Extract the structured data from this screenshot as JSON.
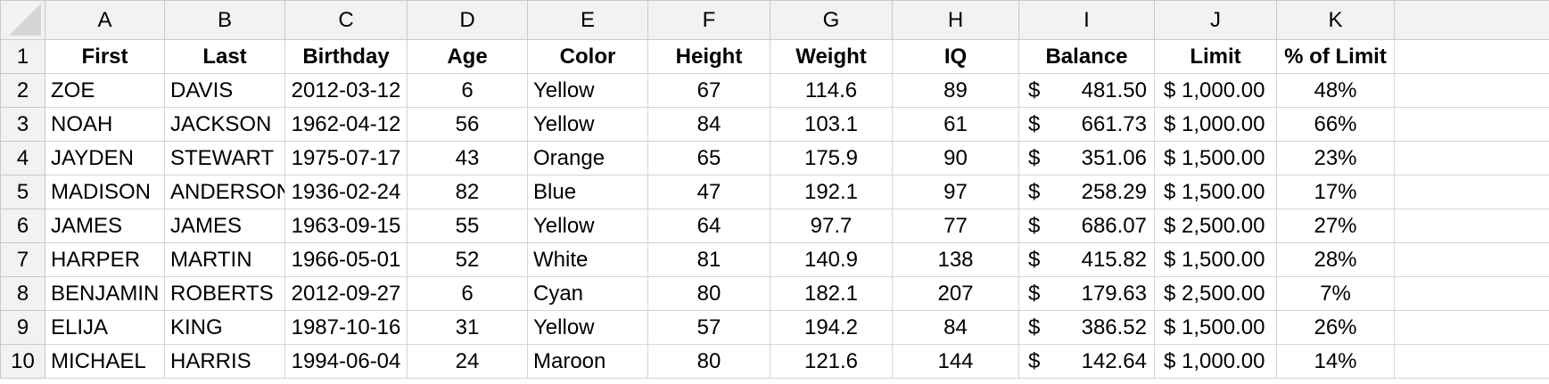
{
  "column_letters": [
    "A",
    "B",
    "C",
    "D",
    "E",
    "F",
    "G",
    "H",
    "I",
    "J",
    "K"
  ],
  "header_row": {
    "number": "1",
    "cells": [
      "First",
      "Last",
      "Birthday",
      "Age",
      "Color",
      "Height",
      "Weight",
      "IQ",
      "Balance",
      "Limit",
      "% of Limit"
    ]
  },
  "rows": [
    {
      "number": "2",
      "first": "ZOE",
      "last": "DAVIS",
      "birthday": "2012-03-12",
      "age": "6",
      "color": "Yellow",
      "height": "67",
      "weight": "114.6",
      "iq": "89",
      "balance_symbol": "$",
      "balance": "481.50",
      "limit": "$ 1,000.00",
      "pct": "48%"
    },
    {
      "number": "3",
      "first": "NOAH",
      "last": "JACKSON",
      "birthday": "1962-04-12",
      "age": "56",
      "color": "Yellow",
      "height": "84",
      "weight": "103.1",
      "iq": "61",
      "balance_symbol": "$",
      "balance": "661.73",
      "limit": "$ 1,000.00",
      "pct": "66%"
    },
    {
      "number": "4",
      "first": "JAYDEN",
      "last": "STEWART",
      "birthday": "1975-07-17",
      "age": "43",
      "color": "Orange",
      "height": "65",
      "weight": "175.9",
      "iq": "90",
      "balance_symbol": "$",
      "balance": "351.06",
      "limit": "$ 1,500.00",
      "pct": "23%"
    },
    {
      "number": "5",
      "first": "MADISON",
      "last": "ANDERSON",
      "birthday": "1936-02-24",
      "age": "82",
      "color": "Blue",
      "height": "47",
      "weight": "192.1",
      "iq": "97",
      "balance_symbol": "$",
      "balance": "258.29",
      "limit": "$ 1,500.00",
      "pct": "17%"
    },
    {
      "number": "6",
      "first": "JAMES",
      "last": "JAMES",
      "birthday": "1963-09-15",
      "age": "55",
      "color": "Yellow",
      "height": "64",
      "weight": "97.7",
      "iq": "77",
      "balance_symbol": "$",
      "balance": "686.07",
      "limit": "$ 2,500.00",
      "pct": "27%"
    },
    {
      "number": "7",
      "first": "HARPER",
      "last": "MARTIN",
      "birthday": "1966-05-01",
      "age": "52",
      "color": "White",
      "height": "81",
      "weight": "140.9",
      "iq": "138",
      "balance_symbol": "$",
      "balance": "415.82",
      "limit": "$ 1,500.00",
      "pct": "28%"
    },
    {
      "number": "8",
      "first": "BENJAMIN",
      "last": "ROBERTS",
      "birthday": "2012-09-27",
      "age": "6",
      "color": "Cyan",
      "height": "80",
      "weight": "182.1",
      "iq": "207",
      "balance_symbol": "$",
      "balance": "179.63",
      "limit": "$ 2,500.00",
      "pct": "7%"
    },
    {
      "number": "9",
      "first": "ELIJA",
      "last": "KING",
      "birthday": "1987-10-16",
      "age": "31",
      "color": "Yellow",
      "height": "57",
      "weight": "194.2",
      "iq": "84",
      "balance_symbol": "$",
      "balance": "386.52",
      "limit": "$ 1,500.00",
      "pct": "26%"
    },
    {
      "number": "10",
      "first": "MICHAEL",
      "last": "HARRIS",
      "birthday": "1994-06-04",
      "age": "24",
      "color": "Maroon",
      "height": "80",
      "weight": "121.6",
      "iq": "144",
      "balance_symbol": "$",
      "balance": "142.64",
      "limit": "$ 1,000.00",
      "pct": "14%"
    }
  ],
  "colors": {
    "header_bg": "#f2f2f2",
    "gridline": "#d4d4d4"
  }
}
